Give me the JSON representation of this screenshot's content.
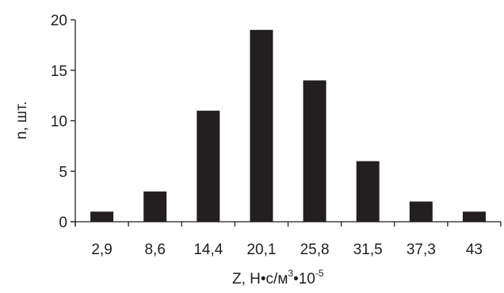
{
  "chart_data": {
    "type": "bar",
    "categories": [
      "2,9",
      "8,6",
      "14,4",
      "20,1",
      "25,8",
      "31,5",
      "37,3",
      "43"
    ],
    "values": [
      1,
      3,
      11,
      19,
      14,
      6,
      2,
      1
    ],
    "ylim": [
      0,
      20
    ],
    "yticks": [
      "0",
      "5",
      "10",
      "15",
      "20"
    ],
    "ylabel": "n, шт.",
    "xlabel": {
      "main": "Z, Н•с/м",
      "sup1": "3",
      "mid": "•10",
      "sup2": "-5"
    },
    "grid": false,
    "legend": "none",
    "bar_color": "#231f20",
    "axis_color": "#1f1f1f"
  }
}
